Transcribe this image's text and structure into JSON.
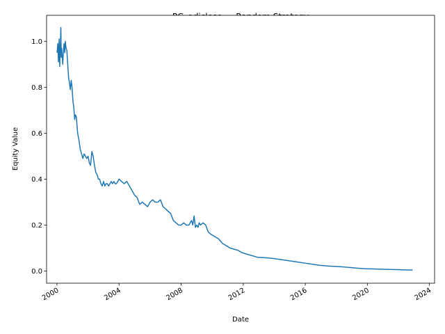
{
  "chart_data": {
    "type": "line",
    "title": "PG_adjclose — Random Strategy",
    "xlabel": "Date",
    "ylabel": "Equity Value",
    "x_type": "date",
    "xlim": [
      "1999-05-01",
      "2024-05-01"
    ],
    "ylim": [
      -0.053,
      1.113
    ],
    "x_ticks": [
      "2000",
      "2004",
      "2008",
      "2012",
      "2016",
      "2020",
      "2024"
    ],
    "y_ticks": [
      "0.0",
      "0.2",
      "0.4",
      "0.6",
      "0.8",
      "1.0"
    ],
    "grid": false,
    "legend": "none",
    "line_color": "#1f77b4",
    "series": [
      {
        "x": [
          "2000-01-03",
          "2000-01-20",
          "2000-02-05",
          "2000-02-20",
          "2000-03-05",
          "2000-03-20",
          "2000-04-01",
          "2000-04-10",
          "2000-04-20",
          "2000-05-01",
          "2000-05-15",
          "2000-06-01",
          "2000-06-15",
          "2000-07-01",
          "2000-07-15",
          "2000-08-01",
          "2000-08-20",
          "2000-09-10",
          "2000-10-01",
          "2000-10-20",
          "2000-11-10",
          "2000-12-01",
          "2000-12-20",
          "2001-01-10",
          "2001-02-01",
          "2001-02-20",
          "2001-03-10",
          "2001-04-01",
          "2001-05-01",
          "2001-06-01",
          "2001-07-01",
          "2001-08-01",
          "2001-09-01",
          "2001-10-01",
          "2001-11-01",
          "2001-12-01",
          "2002-01-01",
          "2002-02-01",
          "2002-03-01",
          "2002-04-01",
          "2002-05-01",
          "2002-06-01",
          "2002-07-01",
          "2002-08-01",
          "2002-09-01",
          "2002-10-01",
          "2002-11-01",
          "2002-12-01",
          "2003-01-01",
          "2003-02-01",
          "2003-03-01",
          "2003-04-01",
          "2003-05-01",
          "2003-06-01",
          "2003-07-01",
          "2003-08-01",
          "2003-09-01",
          "2003-10-01",
          "2003-11-01",
          "2003-12-01",
          "2004-01-01",
          "2004-03-01",
          "2004-05-01",
          "2004-07-01",
          "2004-09-01",
          "2004-11-01",
          "2005-01-01",
          "2005-03-01",
          "2005-05-01",
          "2005-07-01",
          "2005-09-01",
          "2005-11-01",
          "2006-01-01",
          "2006-03-01",
          "2006-05-01",
          "2006-07-01",
          "2006-09-01",
          "2006-11-01",
          "2007-01-01",
          "2007-03-01",
          "2007-05-01",
          "2007-07-01",
          "2007-09-01",
          "2007-11-01",
          "2008-01-01",
          "2008-03-01",
          "2008-05-01",
          "2008-07-01",
          "2008-09-01",
          "2008-10-01",
          "2008-11-01",
          "2008-12-01",
          "2009-01-01",
          "2009-02-01",
          "2009-03-01",
          "2009-04-01",
          "2009-06-01",
          "2009-08-01",
          "2009-10-01",
          "2009-12-01",
          "2010-03-01",
          "2010-06-01",
          "2010-09-01",
          "2010-12-01",
          "2011-03-01",
          "2011-06-01",
          "2011-09-01",
          "2011-12-01",
          "2012-03-01",
          "2012-06-01",
          "2012-09-01",
          "2012-12-01",
          "2013-06-01",
          "2013-12-01",
          "2014-06-01",
          "2014-12-01",
          "2015-06-01",
          "2015-12-01",
          "2016-06-01",
          "2016-12-01",
          "2017-06-01",
          "2017-12-01",
          "2018-06-01",
          "2018-12-01",
          "2019-06-01",
          "2019-12-01",
          "2020-06-01",
          "2020-12-01",
          "2021-06-01",
          "2021-12-01",
          "2022-06-01",
          "2022-12-01"
        ],
        "y": [
          0.95,
          0.99,
          0.91,
          1.01,
          0.89,
          0.98,
          1.06,
          0.93,
          0.97,
          0.94,
          0.9,
          0.96,
          0.99,
          0.95,
          1.0,
          0.97,
          0.96,
          0.9,
          0.84,
          0.82,
          0.79,
          0.83,
          0.8,
          0.74,
          0.71,
          0.66,
          0.68,
          0.67,
          0.6,
          0.57,
          0.53,
          0.51,
          0.49,
          0.51,
          0.5,
          0.49,
          0.5,
          0.47,
          0.46,
          0.52,
          0.5,
          0.46,
          0.43,
          0.42,
          0.4,
          0.4,
          0.38,
          0.37,
          0.39,
          0.37,
          0.38,
          0.38,
          0.37,
          0.38,
          0.39,
          0.38,
          0.39,
          0.38,
          0.38,
          0.39,
          0.4,
          0.39,
          0.38,
          0.39,
          0.37,
          0.35,
          0.33,
          0.32,
          0.29,
          0.3,
          0.29,
          0.28,
          0.3,
          0.31,
          0.3,
          0.3,
          0.31,
          0.28,
          0.27,
          0.26,
          0.25,
          0.22,
          0.21,
          0.2,
          0.2,
          0.21,
          0.2,
          0.2,
          0.22,
          0.2,
          0.24,
          0.19,
          0.2,
          0.19,
          0.21,
          0.2,
          0.21,
          0.2,
          0.17,
          0.16,
          0.15,
          0.14,
          0.12,
          0.11,
          0.1,
          0.095,
          0.09,
          0.08,
          0.075,
          0.07,
          0.065,
          0.06,
          0.058,
          0.055,
          0.05,
          0.045,
          0.04,
          0.035,
          0.03,
          0.025,
          0.022,
          0.02,
          0.018,
          0.015,
          0.012,
          0.01,
          0.009,
          0.008,
          0.007,
          0.006,
          0.005,
          0.004
        ]
      }
    ]
  }
}
